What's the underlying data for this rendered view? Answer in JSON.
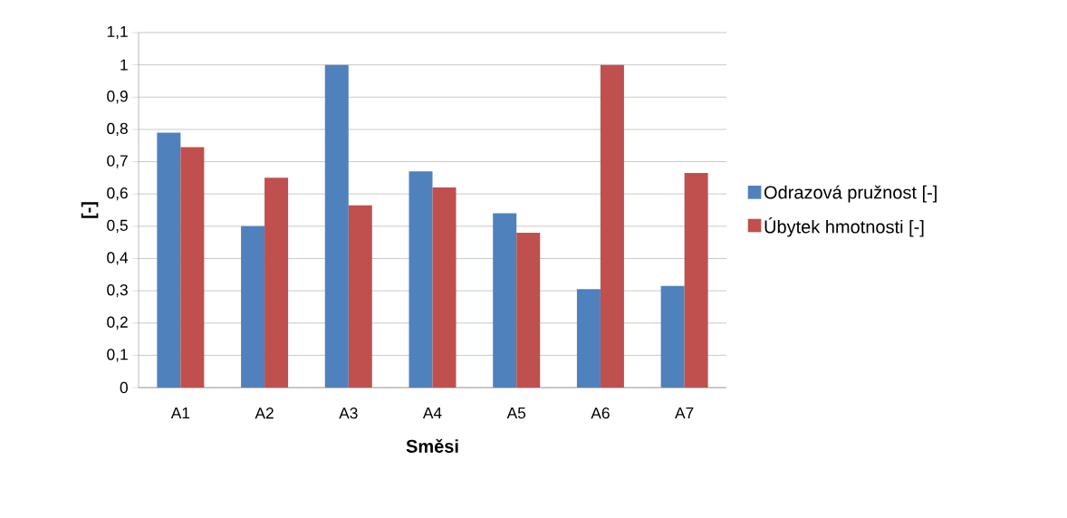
{
  "chart_data": {
    "type": "bar",
    "xlabel": "Směsi",
    "ylabel": "[-]",
    "categories": [
      "A1",
      "A2",
      "A3",
      "A4",
      "A5",
      "A6",
      "A7"
    ],
    "series": [
      {
        "name": "Odrazová pružnost [-]",
        "color": "#4f81bd",
        "values": [
          0.79,
          0.5,
          1.0,
          0.67,
          0.54,
          0.305,
          0.315
        ]
      },
      {
        "name": "Úbytek hmotnosti [-]",
        "color": "#c0504d",
        "values": [
          0.745,
          0.65,
          0.565,
          0.62,
          0.48,
          1.0,
          0.665
        ]
      }
    ],
    "ylim": [
      0,
      1.1
    ],
    "yticks": [
      0,
      {
        "value": 0.1,
        "label": "0,1"
      },
      {
        "value": 0.2,
        "label": "0,2"
      },
      {
        "value": 0.3,
        "label": "0,3"
      },
      {
        "value": 0.4,
        "label": "0,4"
      },
      {
        "value": 0.5,
        "label": "0,5"
      },
      {
        "value": 0.6,
        "label": "0,6"
      },
      {
        "value": 0.7,
        "label": "0,7"
      },
      {
        "value": 0.8,
        "label": "0,8"
      },
      {
        "value": 0.9,
        "label": "0,9"
      },
      1,
      {
        "value": 1.1,
        "label": "1,1"
      }
    ],
    "grid": "y",
    "legend": "right"
  }
}
